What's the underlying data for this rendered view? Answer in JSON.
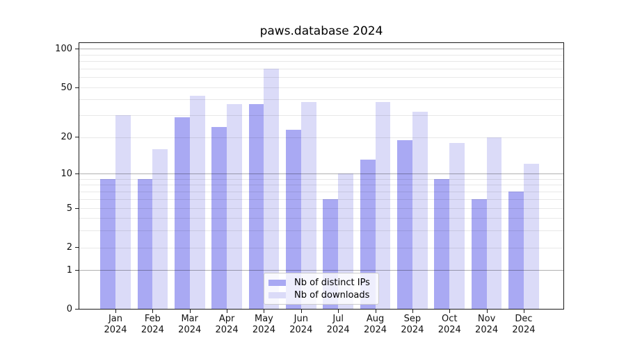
{
  "title": "paws.database 2024",
  "colors": {
    "ips": "#a9a9f3",
    "downloads": "#dbdbf8",
    "grid_decade": "rgba(0,0,0,0.31)",
    "grid_minor": "rgba(0,0,0,0.09)",
    "spine": "#1a1a1a"
  },
  "legend": {
    "items": [
      {
        "label": "Nb of distinct IPs",
        "color_key": "ips"
      },
      {
        "label": "Nb of downloads",
        "color_key": "downloads"
      }
    ]
  },
  "chart_data": {
    "type": "bar",
    "title": "paws.database 2024",
    "categories": [
      "Jan 2024",
      "Feb 2024",
      "Mar 2024",
      "Apr 2024",
      "May 2024",
      "Jun 2024",
      "Jul 2024",
      "Aug 2024",
      "Sep 2024",
      "Oct 2024",
      "Nov 2024",
      "Dec 2024"
    ],
    "series": [
      {
        "name": "Nb of distinct IPs",
        "color_key": "ips",
        "values": [
          9,
          9,
          29,
          24,
          37,
          23,
          6,
          13,
          19,
          9,
          6,
          7
        ]
      },
      {
        "name": "Nb of downloads",
        "color_key": "downloads",
        "values": [
          30,
          16,
          43,
          37,
          70,
          38,
          10,
          38,
          32,
          18,
          20,
          12
        ]
      }
    ],
    "xlabel": "",
    "ylabel": "",
    "yscale": "symlog",
    "ylim": [
      0,
      113
    ],
    "ytick_values": [
      0,
      1,
      2,
      5,
      10,
      20,
      50,
      100
    ],
    "ytick_labels": [
      "0",
      "1",
      "2",
      "5",
      "10",
      "20",
      "50",
      "100"
    ],
    "minor_grid_values": [
      3,
      4,
      6,
      7,
      8,
      9,
      30,
      40,
      60,
      70,
      80,
      90
    ],
    "grid": true,
    "legend_position": "lower center"
  }
}
